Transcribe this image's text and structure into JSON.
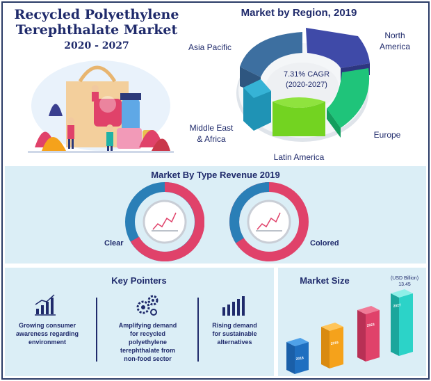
{
  "header": {
    "title_line1": "Recycled Polyethylene",
    "title_line2": "Terephthalate Market",
    "years": "2020 - 2027"
  },
  "region": {
    "title": "Market by Region, 2019",
    "cagr_line1": "7.31% CAGR",
    "cagr_line2": "(2020-2027)",
    "labels": {
      "asia_pacific": "Asia Pacific",
      "north_america_1": "North",
      "north_america_2": "America",
      "europe": "Europe",
      "latin_america": "Latin America",
      "mea_1": "Middle East",
      "mea_2": "& Africa"
    },
    "colors": {
      "asia_pacific": "#3d6fa0",
      "north_america": "#3f4aa8",
      "europe": "#1fc47a",
      "latin_america": "#73d321",
      "mea": "#1f93b5"
    }
  },
  "type_revenue": {
    "title": "Market By Type Revenue 2019",
    "clear_label": "Clear",
    "colored_label": "Colored",
    "colors": {
      "primary": "#e0426a",
      "secondary": "#2a7fb7"
    }
  },
  "key_pointers": {
    "title": "Key Pointers",
    "items": [
      {
        "icon": "growth-chart-icon",
        "text_lines": [
          "Growing consumer",
          "awareness regarding",
          "environment"
        ]
      },
      {
        "icon": "gears-icon",
        "text_lines": [
          "Amplifying demand",
          "for recycled",
          "polyethylene",
          "terephthalate from",
          "non-food sector"
        ]
      },
      {
        "icon": "rising-bars-icon",
        "text_lines": [
          "Rising demand",
          "for sustainable",
          "alternatives"
        ]
      }
    ]
  },
  "market_size": {
    "title": "Market Size",
    "unit_line1": "(USD Billion)",
    "value_2027": "13.45",
    "bars": [
      {
        "year": "2018",
        "color": "#1f6fc0"
      },
      {
        "year": "2019",
        "color": "#f5a21b"
      },
      {
        "year": "2023",
        "color": "#e0426a"
      },
      {
        "year": "2027",
        "color": "#2cd3c8"
      }
    ]
  }
}
